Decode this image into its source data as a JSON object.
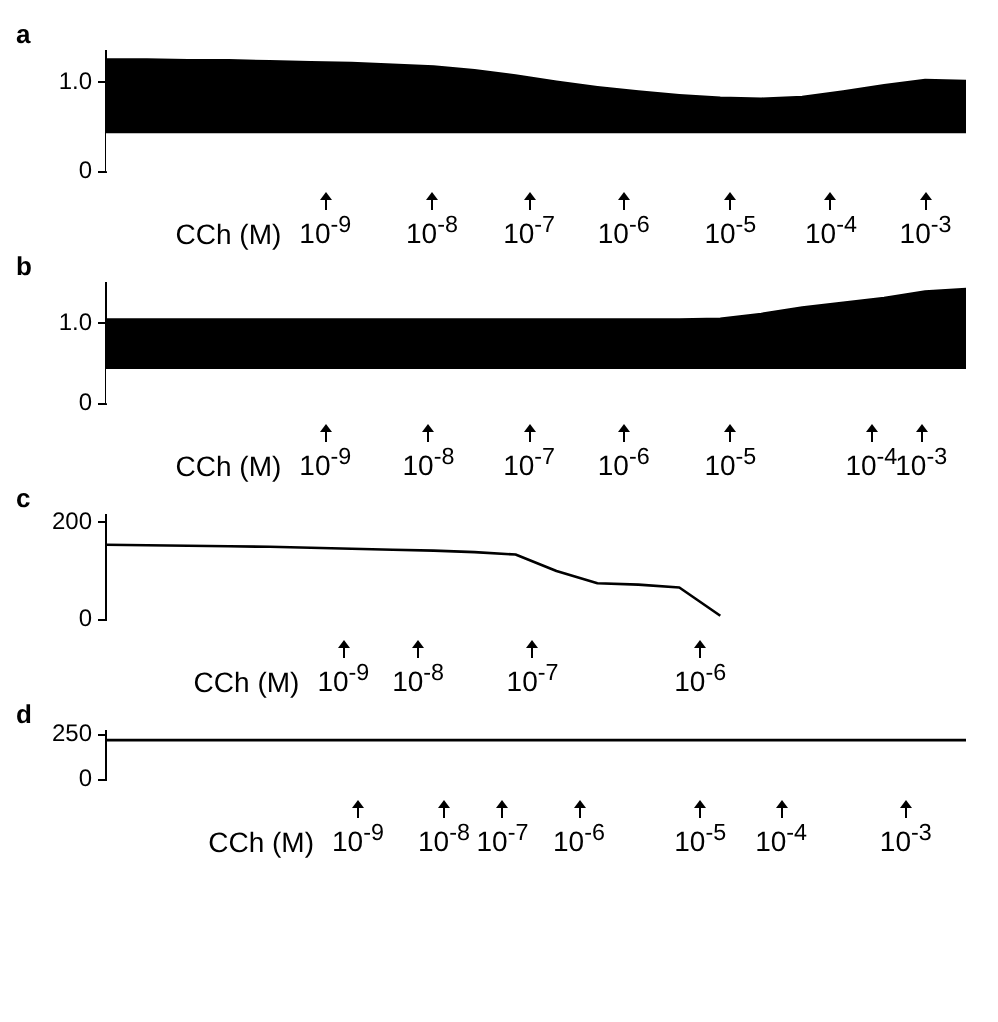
{
  "chart_data": [
    {
      "type": "area",
      "title": "a",
      "categories": [
        null,
        null,
        null,
        null,
        null,
        null,
        null,
        null,
        null,
        null,
        null,
        null,
        null,
        null,
        null,
        null,
        null,
        null,
        null,
        null,
        null,
        null
      ],
      "ylim": [
        0,
        1.35
      ],
      "yticks": [
        0,
        {
          "value": 1,
          "label": "1.0"
        }
      ],
      "tick_labels": "y",
      "grid": false,
      "legend": false,
      "stacked": true,
      "series": [
        {
          "color": "#ffffff",
          "values": [
            0.42,
            0.42,
            0.42,
            0.42,
            0.42,
            0.42,
            0.42,
            0.42,
            0.42,
            0.42,
            0.42,
            0.42,
            0.42,
            0.42,
            0.42,
            0.42,
            0.42,
            0.42,
            0.42,
            0.42,
            0.42,
            0.42
          ]
        },
        {
          "color": "#000000",
          "values": [
            0.84,
            0.84,
            0.83,
            0.83,
            0.82,
            0.81,
            0.8,
            0.78,
            0.76,
            0.72,
            0.66,
            0.59,
            0.53,
            0.48,
            0.44,
            0.41,
            0.4,
            0.42,
            0.48,
            0.55,
            0.61,
            0.6
          ]
        }
      ],
      "annotations": [
        "CCh (M)",
        "10$^{-9}$",
        "10$^{-8}$",
        "10$^{-7}$",
        "10$^{-6}$",
        "10$^{-5}$",
        "10$^{-4}$",
        "10$^{-3}$"
      ]
    },
    {
      "type": "area",
      "title": "b",
      "categories": [
        null,
        null,
        null,
        null,
        null,
        null,
        null,
        null,
        null,
        null,
        null,
        null,
        null,
        null,
        null,
        null,
        null,
        null,
        null,
        null,
        null,
        null
      ],
      "ylim": [
        0,
        1.5
      ],
      "yticks": [
        0,
        {
          "value": 1,
          "label": "1.0"
        }
      ],
      "tick_labels": "y",
      "grid": false,
      "legend": false,
      "stacked": true,
      "series": [
        {
          "color": "#ffffff",
          "values": [
            0.42,
            0.42,
            0.42,
            0.42,
            0.42,
            0.42,
            0.42,
            0.42,
            0.42,
            0.42,
            0.42,
            0.42,
            0.42,
            0.42,
            0.42,
            0.42,
            0.42,
            0.42,
            0.42,
            0.42,
            0.42,
            0.42
          ]
        },
        {
          "color": "#000000",
          "values": [
            0.63,
            0.63,
            0.63,
            0.63,
            0.63,
            0.63,
            0.63,
            0.63,
            0.63,
            0.63,
            0.63,
            0.63,
            0.63,
            0.63,
            0.63,
            0.64,
            0.7,
            0.78,
            0.84,
            0.9,
            0.98,
            1.01
          ]
        }
      ],
      "annotations": [
        "CCh (M)",
        "10$^{-9}$",
        "10$^{-8}$",
        "10$^{-7}$",
        "10$^{-6}$",
        "10$^{-5}$",
        "10$^{-4}$",
        "10$^{-3}$"
      ]
    },
    {
      "type": "line",
      "title": "c",
      "categories": [
        null,
        null,
        null,
        null,
        null,
        null,
        null,
        null,
        null,
        null,
        null,
        null,
        null,
        null,
        null,
        null,
        null,
        null,
        null,
        null,
        null,
        null
      ],
      "ylim": [
        0,
        215
      ],
      "yticks": [
        0,
        200
      ],
      "tick_labels": "y",
      "grid": false,
      "legend": false,
      "marker": "none",
      "series": [
        {
          "color": "#000000",
          "values": [
            154,
            153,
            152,
            151,
            150,
            148,
            146,
            144,
            142,
            139,
            134,
            100,
            75,
            72,
            66,
            8,
            null,
            null,
            null,
            null,
            null,
            null
          ]
        }
      ],
      "annotations": [
        "CCh (M)",
        "10$^{-9}$",
        "10$^{-8}$",
        "10$^{-7}$",
        "10$^{-6}$"
      ]
    },
    {
      "type": "line",
      "title": "d",
      "categories": [
        null,
        null,
        null,
        null,
        null,
        null,
        null,
        null,
        null,
        null,
        null,
        null,
        null,
        null,
        null,
        null,
        null,
        null,
        null,
        null,
        null,
        null
      ],
      "ylim": [
        0,
        270
      ],
      "yticks": [
        0,
        250
      ],
      "tick_labels": "y",
      "grid": false,
      "legend": false,
      "marker": "none",
      "series": [
        {
          "color": "#000000",
          "values": [
            220,
            220,
            220,
            220,
            220,
            220,
            220,
            220,
            220,
            220,
            220,
            220,
            220,
            220,
            220,
            220,
            220,
            220,
            220,
            220,
            220,
            220
          ]
        }
      ],
      "annotations": [
        "CCh (M)",
        "10$^{-9}$",
        "10$^{-8}$",
        "10$^{-7}$",
        "10$^{-6}$",
        "10$^{-5}$",
        "10$^{-4}$",
        "10$^{-3}$"
      ]
    }
  ]
}
